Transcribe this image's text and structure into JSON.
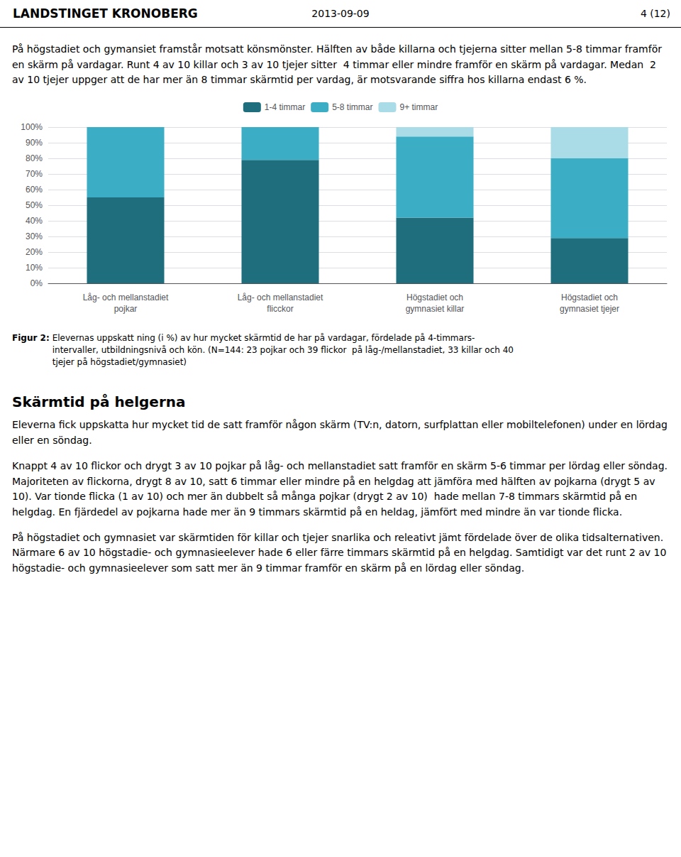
{
  "chart_data": {
    "type": "bar",
    "stacked": true,
    "categories": [
      "Låg- och mellanstadiet\npojkar",
      "Låg- och mellanstadiet\nflicckor",
      "Högstadiet och\ngymnasiet killar",
      "Högstadiet och\ngymnasiet tjejer"
    ],
    "series": [
      {
        "name": "1-4 timmar",
        "color": "#1F6E7E",
        "values": [
          55,
          79,
          42,
          29
        ]
      },
      {
        "name": "5-8 timmar",
        "color": "#3BAEC6",
        "values": [
          45,
          21,
          52,
          51
        ]
      },
      {
        "name": "9+ timmar",
        "color": "#AADCE8",
        "values": [
          0,
          0,
          6,
          20
        ]
      }
    ],
    "ylim": [
      0,
      100
    ],
    "yticks": [
      {
        "value": 0,
        "label": "0%"
      },
      {
        "value": 10,
        "label": "10%"
      },
      {
        "value": 20,
        "label": "20%"
      },
      {
        "value": 30,
        "label": "30%"
      },
      {
        "value": 40,
        "label": "40%"
      },
      {
        "value": 50,
        "label": "50%"
      },
      {
        "value": 60,
        "label": "60%"
      },
      {
        "value": 70,
        "label": "70%"
      },
      {
        "value": 80,
        "label": "80%"
      },
      {
        "value": 90,
        "label": "90%"
      },
      {
        "value": 100,
        "label": "100%"
      }
    ],
    "grid": true,
    "legend": "top",
    "annotations": [
      "LANDSTINGET KRONOBERG",
      "2013-09-09",
      "4 (12)",
      "På högstadiet och gymansiet framstår motsatt könsmönster. Hälften av både killarna och tjejerna sitter mellan 5-8 timmar framför en skärm på vardagar. Runt 4 av 10 killar och 3 av 10 tjejer sitter  4 timmar eller mindre framför en skärm på vardagar. Medan  2 av 10 tjejer uppger att de har mer än 8 timmar skärmtid per vardag, är motsvarande siffra hos killarna endast 6 %.",
      "Figur 2:",
      "Elevernas uppskatt ning (i %) av hur mycket skärmtid de har på vardagar, fördelade på 4-timmars-\nintervaller, utbildningsnivå och kön. (N=144: 23 pojkar och 39 flickor  på låg-/mellanstadiet, 33 killar och 40\ntjejer på högstadiet/gymnasiet)",
      "Skärmtid på helgerna",
      "Eleverna fick uppskatta hur mycket tid de satt framför någon skärm (TV:n, datorn, surfplattan eller mobiltelefonen) under en lördag eller en söndag.",
      "Knappt 4 av 10 flickor och drygt 3 av 10 pojkar på låg- och mellanstadiet satt framför en skärm 5-6 timmar per lördag eller söndag. Majoriteten av flickorna, drygt 8 av 10, satt 6 timmar eller mindre på en helgdag att jämföra med hälften av pojkarna (drygt 5 av 10). Var tionde flicka (1 av 10) och mer än dubbelt så många pojkar (drygt 2 av 10)  hade mellan 7-8 timmars skärmtid på en helgdag. En fjärdedel av pojkarna hade mer än 9 timmars skärmtid på en heldag, jämfört med mindre än var tionde flicka.",
      "På högstadiet och gymnasiet var skärmtiden för killar och tjejer snarlika och releativt jämt fördelade över de olika tidsalternativen. Närmare 6 av 10 högstadie- och gymnasieelever hade 6 eller färre timmars skärmtid på en helgdag. Samtidigt var det runt 2 av 10 högstadie- och gymnasieelever som satt mer än 9 timmar framför en skärm på en lördag eller söndag."
    ]
  }
}
